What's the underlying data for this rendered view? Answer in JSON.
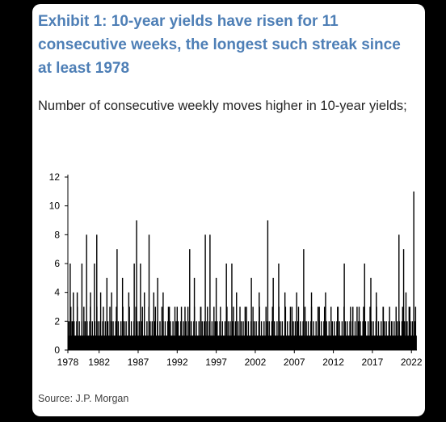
{
  "title_lines": [
    "Exhibit 1: 10-year yields have risen for 11",
    "consecutive weeks, the longest such streak since",
    "at least 1978"
  ],
  "subtitle": "Number of consecutive weekly moves higher in 10-year yields;",
  "source": "Source: J.P. Morgan",
  "colors": {
    "title": "#4e7fb6",
    "bars": "#000000",
    "card": "#ffffff",
    "background": "#000000"
  },
  "chart_data": {
    "type": "bar",
    "title": "",
    "xlabel": "",
    "ylabel": "",
    "ylim": [
      0,
      12
    ],
    "yticks": [
      0,
      2,
      4,
      6,
      8,
      10,
      12
    ],
    "xlim": [
      1978,
      2022.7
    ],
    "xticks": [
      "1978",
      "1982",
      "1987",
      "1992",
      "1997",
      "2002",
      "2007",
      "2012",
      "2017",
      "2022"
    ],
    "baseline_pattern": [
      1,
      2,
      1,
      1,
      3,
      1,
      2,
      1,
      1,
      2,
      1,
      1,
      1,
      2,
      3,
      1,
      1,
      2,
      1,
      1
    ],
    "x_spacing_years": 0.0833,
    "peaks": [
      {
        "x": 1978.3,
        "y": 6
      },
      {
        "x": 1978.7,
        "y": 4
      },
      {
        "x": 1979.2,
        "y": 4
      },
      {
        "x": 1979.8,
        "y": 6
      },
      {
        "x": 1980.4,
        "y": 8
      },
      {
        "x": 1980.9,
        "y": 4
      },
      {
        "x": 1981.4,
        "y": 6
      },
      {
        "x": 1981.7,
        "y": 8
      },
      {
        "x": 1982.2,
        "y": 4
      },
      {
        "x": 1983.0,
        "y": 5
      },
      {
        "x": 1983.6,
        "y": 4
      },
      {
        "x": 1984.3,
        "y": 7
      },
      {
        "x": 1985.0,
        "y": 5
      },
      {
        "x": 1985.8,
        "y": 4
      },
      {
        "x": 1986.5,
        "y": 6
      },
      {
        "x": 1986.8,
        "y": 9
      },
      {
        "x": 1987.3,
        "y": 6
      },
      {
        "x": 1987.8,
        "y": 4
      },
      {
        "x": 1988.4,
        "y": 8
      },
      {
        "x": 1989.0,
        "y": 4
      },
      {
        "x": 1989.5,
        "y": 5
      },
      {
        "x": 1990.2,
        "y": 4
      },
      {
        "x": 1991.0,
        "y": 3
      },
      {
        "x": 1992.0,
        "y": 3
      },
      {
        "x": 1993.0,
        "y": 3
      },
      {
        "x": 1993.6,
        "y": 7
      },
      {
        "x": 1994.2,
        "y": 5
      },
      {
        "x": 1995.0,
        "y": 3
      },
      {
        "x": 1995.6,
        "y": 8
      },
      {
        "x": 1996.2,
        "y": 8
      },
      {
        "x": 1997.0,
        "y": 5
      },
      {
        "x": 1998.3,
        "y": 6
      },
      {
        "x": 1999.0,
        "y": 6
      },
      {
        "x": 1999.6,
        "y": 4
      },
      {
        "x": 2000.7,
        "y": 3
      },
      {
        "x": 2001.5,
        "y": 5
      },
      {
        "x": 2002.5,
        "y": 4
      },
      {
        "x": 2003.6,
        "y": 9
      },
      {
        "x": 2004.3,
        "y": 5
      },
      {
        "x": 2005.0,
        "y": 6
      },
      {
        "x": 2005.8,
        "y": 4
      },
      {
        "x": 2006.5,
        "y": 3
      },
      {
        "x": 2007.3,
        "y": 4
      },
      {
        "x": 2008.2,
        "y": 7
      },
      {
        "x": 2009.2,
        "y": 4
      },
      {
        "x": 2010.2,
        "y": 3
      },
      {
        "x": 2011.0,
        "y": 4
      },
      {
        "x": 2012.6,
        "y": 3
      },
      {
        "x": 2013.4,
        "y": 6
      },
      {
        "x": 2014.5,
        "y": 3
      },
      {
        "x": 2015.3,
        "y": 3
      },
      {
        "x": 2016.0,
        "y": 6
      },
      {
        "x": 2016.8,
        "y": 5
      },
      {
        "x": 2017.5,
        "y": 4
      },
      {
        "x": 2018.4,
        "y": 3
      },
      {
        "x": 2019.5,
        "y": 2
      },
      {
        "x": 2020.4,
        "y": 8
      },
      {
        "x": 2021.0,
        "y": 7
      },
      {
        "x": 2021.3,
        "y": 4
      },
      {
        "x": 2021.8,
        "y": 3
      },
      {
        "x": 2022.3,
        "y": 11
      }
    ]
  }
}
